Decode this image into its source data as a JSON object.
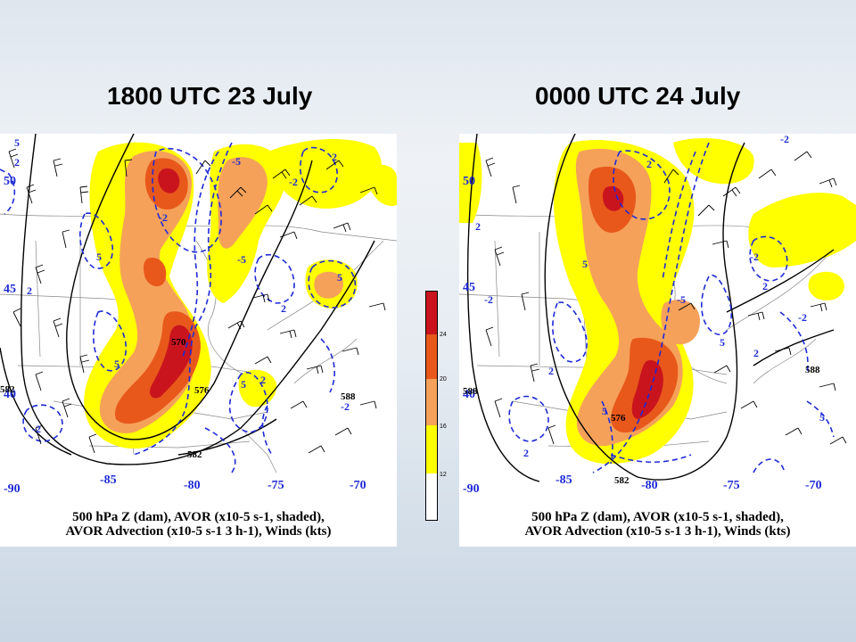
{
  "titles": {
    "left": "1800 UTC 23 July",
    "right": "0000 UTC 24 July"
  },
  "caption": {
    "line1": "500 hPa Z (dam), AVOR (x10-5 s-1, shaded),",
    "line2": "AVOR Advection (x10-5 s-1 3 h-1), Winds (kts)"
  },
  "colorbar": {
    "colors": [
      "#ffff00",
      "#f5a15a",
      "#e8581b",
      "#c9141e"
    ],
    "ticks": [
      "12",
      "16",
      "20",
      "24"
    ]
  },
  "panels": [
    {
      "id": "left",
      "lat_labels": [
        "50",
        "45",
        "40"
      ],
      "lon_labels": [
        "-90",
        "-85",
        "-80",
        "-75",
        "-70"
      ],
      "height_labels": [
        "570",
        "576",
        "582",
        "588",
        "582"
      ],
      "advection_labels": [
        "5",
        "2",
        "-2",
        "-5",
        "5",
        "2",
        "-2",
        "2",
        "5",
        "-5",
        "2",
        "5",
        "-2",
        "2",
        "-2",
        "5"
      ]
    },
    {
      "id": "right",
      "lat_labels": [
        "50",
        "45",
        "40"
      ],
      "lon_labels": [
        "-90",
        "-85",
        "-80",
        "-75",
        "-70"
      ],
      "height_labels": [
        "576",
        "582",
        "588",
        "588"
      ],
      "advection_labels": [
        "2",
        "-2",
        "5",
        "2",
        "-5",
        "2",
        "-2",
        "5",
        "2",
        "-2",
        "5",
        "2",
        "-2",
        "2",
        "5"
      ]
    }
  ]
}
